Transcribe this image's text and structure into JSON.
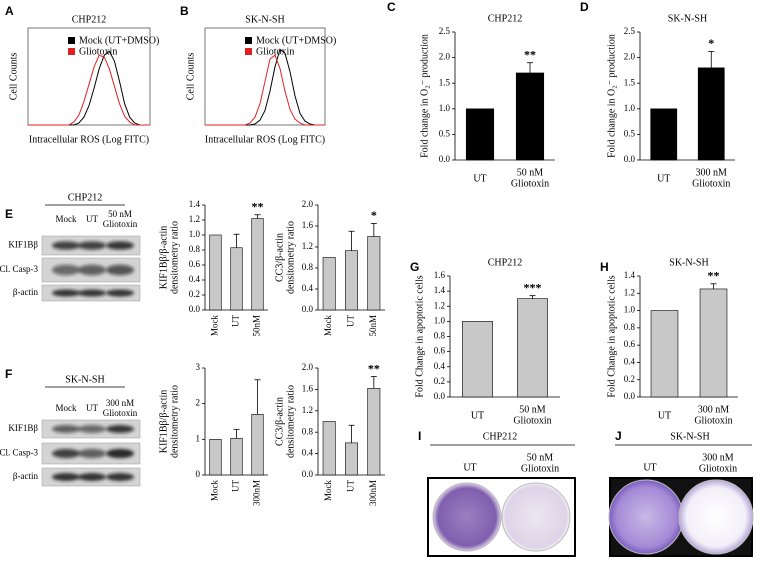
{
  "chart_data": [
    {
      "type": "flow",
      "panel": "A",
      "title": "CHP212",
      "xlabel": "Intracellular ROS (Log FITC)",
      "ylabel": "Cell Counts",
      "ylim": [
        0,
        100
      ],
      "series": [
        {
          "name": "Mock (UT+DMSO)",
          "color": "#000000",
          "values": [
            0,
            0,
            0,
            0,
            0,
            0,
            0,
            0,
            0,
            0,
            2,
            8,
            20,
            38,
            58,
            72,
            76,
            66,
            45,
            22,
            8,
            2,
            0,
            0,
            0
          ]
        },
        {
          "name": "Gliotoxin",
          "color": "#e02020",
          "values": [
            0,
            0,
            0,
            0,
            0,
            0,
            0,
            0,
            0,
            3,
            10,
            24,
            42,
            60,
            72,
            70,
            58,
            40,
            22,
            9,
            3,
            0,
            0,
            0,
            0
          ]
        }
      ]
    },
    {
      "type": "flow",
      "panel": "B",
      "title": "SK-N-SH",
      "xlabel": "Intracellular ROS (Log FITC)",
      "ylabel": "Cell Counts",
      "ylim": [
        0,
        100
      ],
      "series": [
        {
          "name": "Mock (UT+DMSO)",
          "color": "#000000",
          "values": [
            0,
            0,
            0,
            0,
            0,
            0,
            0,
            0,
            0,
            0,
            1,
            5,
            15,
            35,
            60,
            78,
            74,
            55,
            30,
            12,
            4,
            1,
            0,
            0,
            0
          ]
        },
        {
          "name": "Gliotoxin",
          "color": "#e02020",
          "values": [
            0,
            0,
            0,
            0,
            0,
            0,
            0,
            0,
            0,
            2,
            8,
            22,
            45,
            68,
            72,
            58,
            35,
            16,
            6,
            2,
            0,
            0,
            0,
            0,
            0
          ]
        }
      ]
    },
    {
      "type": "bar",
      "panel": "C",
      "title": "CHP212",
      "ylabel": "Fold change in O₂⁻ production",
      "color": "#000000",
      "categories": [
        "UT",
        "50 nM\nGliotoxin"
      ],
      "values": [
        1,
        1.7
      ],
      "errors": [
        0,
        0.2
      ],
      "significance": [
        null,
        "**"
      ],
      "ylim": [
        0,
        2.5
      ],
      "yticks": [
        {
          "value": 0,
          "label": "0.0"
        },
        0.5,
        {
          "value": 1,
          "label": "1.0"
        },
        1.5,
        {
          "value": 2,
          "label": "2.0"
        },
        2.5
      ]
    },
    {
      "type": "bar",
      "panel": "D",
      "title": "SK-N-SH",
      "ylabel": "Fold change in O₂⁻ production",
      "color": "#000000",
      "categories": [
        "UT",
        "300 nM\nGliotoxin"
      ],
      "values": [
        1,
        1.8
      ],
      "errors": [
        0,
        0.32
      ],
      "significance": [
        null,
        "*"
      ],
      "ylim": [
        0,
        2.5
      ],
      "yticks": [
        {
          "value": 0,
          "label": "0.0"
        },
        0.5,
        {
          "value": 1,
          "label": "1.0"
        },
        1.5,
        {
          "value": 2,
          "label": "2.0"
        },
        2.5
      ]
    },
    {
      "type": "bar",
      "ylabel": "KIF1Bβ/β-actin\ndensitometry ratio",
      "color": "#c8c8c8",
      "categories": [
        "Mock",
        "UT",
        "50nM"
      ],
      "values": [
        1,
        0.83,
        1.22
      ],
      "errors": [
        0,
        0.18,
        0.05
      ],
      "significance": [
        null,
        null,
        "**"
      ],
      "ylim": [
        0,
        1.4
      ],
      "yticks": [
        {
          "value": 0,
          "label": "0.0"
        },
        0.2,
        0.4,
        0.6,
        0.8,
        {
          "value": 1,
          "label": "1.0"
        },
        1.2,
        1.4
      ]
    },
    {
      "type": "bar",
      "ylabel": "CC3/β-actin\ndensitometry ratio",
      "color": "#c8c8c8",
      "categories": [
        "Mock",
        "UT",
        "50nM"
      ],
      "values": [
        1,
        1.13,
        1.4
      ],
      "errors": [
        0,
        0.37,
        0.25
      ],
      "significance": [
        null,
        null,
        "*"
      ],
      "ylim": [
        0,
        2
      ],
      "yticks": [
        {
          "value": 0,
          "label": "0.0"
        },
        0.4,
        0.8,
        1.2,
        1.6,
        {
          "value": 2,
          "label": "2.0"
        }
      ]
    },
    {
      "type": "bar",
      "ylabel": "KIF1Bβ/β-actin\ndensitometry ratio",
      "color": "#c8c8c8",
      "categories": [
        "Mock",
        "UT",
        "300nM"
      ],
      "values": [
        1,
        1.03,
        1.7
      ],
      "errors": [
        0,
        0.25,
        0.97
      ],
      "significance": [
        null,
        null,
        null
      ],
      "ylim": [
        0,
        3
      ],
      "yticks": [
        0,
        1,
        2,
        3
      ]
    },
    {
      "type": "bar",
      "ylabel": "CC3/β-actin\ndensitometry ratio",
      "color": "#c8c8c8",
      "categories": [
        "Mock",
        "UT",
        "300nM"
      ],
      "values": [
        1,
        0.6,
        1.62
      ],
      "errors": [
        0,
        0.33,
        0.22
      ],
      "significance": [
        null,
        null,
        "**"
      ],
      "ylim": [
        0,
        2
      ],
      "yticks": [
        {
          "value": 0,
          "label": "0.0"
        },
        0.4,
        0.8,
        1.2,
        1.6,
        {
          "value": 2,
          "label": "2.0"
        }
      ]
    },
    {
      "type": "bar",
      "panel": "G",
      "title": "CHP212",
      "ylabel": "Fold Change in apoptotic cells",
      "color": "#c8c8c8",
      "categories": [
        "UT",
        "50 nM\nGliotoxin"
      ],
      "values": [
        1,
        1.3
      ],
      "errors": [
        0,
        0.04
      ],
      "significance": [
        null,
        "***"
      ],
      "ylim": [
        0,
        1.6
      ],
      "yticks": [
        {
          "value": 0,
          "label": "0.0"
        },
        0.2,
        0.4,
        0.6,
        0.8,
        {
          "value": 1,
          "label": "1.0"
        },
        1.2,
        1.4,
        1.6
      ]
    },
    {
      "type": "bar",
      "panel": "H",
      "title": "SK-N-SH",
      "ylabel": "Fold Change in apoptotic cells",
      "color": "#c8c8c8",
      "categories": [
        "UT",
        "300 nM\nGliotoxin"
      ],
      "values": [
        1,
        1.25
      ],
      "errors": [
        0,
        0.06
      ],
      "significance": [
        null,
        "**"
      ],
      "ylim": [
        0,
        1.4
      ],
      "yticks": [
        {
          "value": 0,
          "label": "0.0"
        },
        0.2,
        0.4,
        0.6,
        0.8,
        {
          "value": 1,
          "label": "1.0"
        },
        1.2,
        1.4
      ]
    }
  ],
  "blots": [
    {
      "panel": "E",
      "title": "CHP212",
      "lanes": [
        "Mock",
        "UT",
        "50 nM\nGliotoxin"
      ],
      "rows": [
        "KIF1Bβ",
        "Cl. Casp-3",
        "β-actin"
      ]
    },
    {
      "panel": "F",
      "title": "SK-N-SH",
      "lanes": [
        "Mock",
        "UT",
        "300 nM\nGliotoxin"
      ],
      "rows": [
        "KIF1Bβ",
        "Cl. Casp-3",
        "β-actin"
      ]
    }
  ],
  "plates": [
    {
      "panel": "I",
      "title": "CHP212",
      "labels": [
        "UT",
        "50 nM\nGliotoxin"
      ]
    },
    {
      "panel": "J",
      "title": "SK-N-SH",
      "labels": [
        "UT",
        "300 nM\nGliotoxin"
      ]
    }
  ]
}
